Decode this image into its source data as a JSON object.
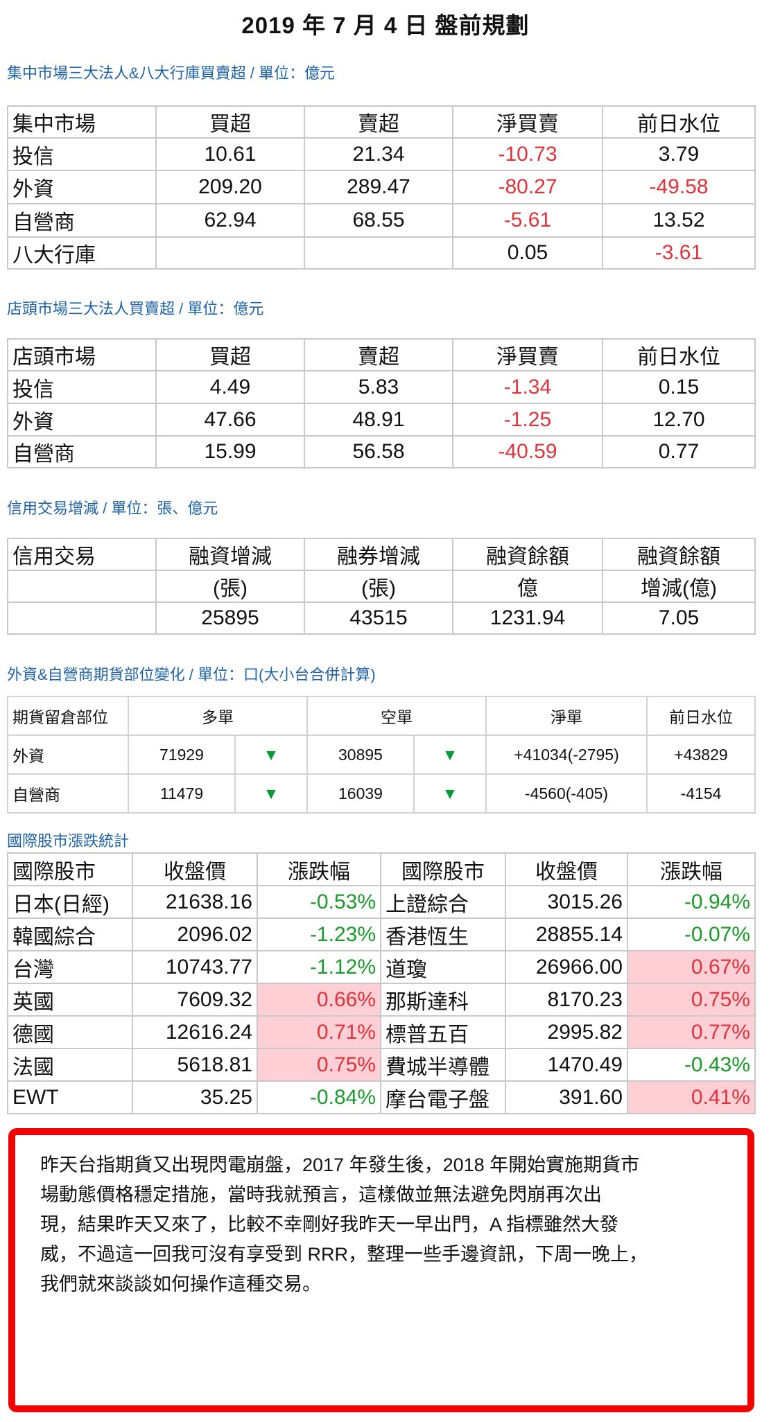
{
  "title": "2019 年 7 月 4 日  盤前規劃",
  "sections": {
    "listed": "集中市場三大法人&八大行庫買賣超 / 單位：億元",
    "otc": "店頭市場三大法人買賣超 / 單位：億元",
    "margin": "信用交易增減 / 單位：張、億元",
    "futures": "外資&自營商期貨部位變化 / 單位：口(大小台合併計算)",
    "intl": "國際股市漲跌統計"
  },
  "listed": {
    "headers": [
      "集中市場",
      "買超",
      "賣超",
      "淨買賣",
      "前日水位"
    ],
    "rows": [
      [
        "投信",
        "10.61",
        "21.34",
        "-10.73",
        "3.79"
      ],
      [
        "外資",
        "209.20",
        "289.47",
        "-80.27",
        "-49.58"
      ],
      [
        "自營商",
        "62.94",
        "68.55",
        "-5.61",
        "13.52"
      ],
      [
        "八大行庫",
        "",
        "",
        "0.05",
        "-3.61"
      ]
    ]
  },
  "otc": {
    "headers": [
      "店頭市場",
      "買超",
      "賣超",
      "淨買賣",
      "前日水位"
    ],
    "rows": [
      [
        "投信",
        "4.49",
        "5.83",
        "-1.34",
        "0.15"
      ],
      [
        "外資",
        "47.66",
        "48.91",
        "-1.25",
        "12.70"
      ],
      [
        "自營商",
        "15.99",
        "56.58",
        "-40.59",
        "0.77"
      ]
    ]
  },
  "margin": {
    "headers": [
      "信用交易",
      "融資增減",
      "融券增減",
      "融資餘額",
      "融資餘額"
    ],
    "units": [
      "",
      "(張)",
      "(張)",
      "億",
      "增減(億)"
    ],
    "values": [
      "",
      "25895",
      "43515",
      "1231.94",
      "7.05"
    ]
  },
  "futures": {
    "headers": [
      "期貨留倉部位",
      "多單",
      "空單",
      "淨單",
      "前日水位"
    ],
    "rows": [
      [
        "外資",
        "71929",
        "▼",
        "30895",
        "▼",
        "+41034(-2795)",
        "+43829"
      ],
      [
        "自營商",
        "11479",
        "▼",
        "16039",
        "▼",
        "-4560(-405)",
        "-4154"
      ]
    ]
  },
  "intl": {
    "headers": [
      "國際股市",
      "收盤價",
      "漲跌幅",
      "國際股市",
      "收盤價",
      "漲跌幅"
    ],
    "rows": [
      [
        "日本(日經)",
        "21638.16",
        "-0.53%",
        "上證綜合",
        "3015.26",
        "-0.94%"
      ],
      [
        "韓國綜合",
        "2096.02",
        "-1.23%",
        "香港恆生",
        "28855.14",
        "-0.07%"
      ],
      [
        "台灣",
        "10743.77",
        "-1.12%",
        "道瓊",
        "26966.00",
        "0.67%"
      ],
      [
        "英國",
        "7609.32",
        "0.66%",
        "那斯達科",
        "8170.23",
        "0.75%"
      ],
      [
        "德國",
        "12616.24",
        "0.71%",
        "標普五百",
        "2995.82",
        "0.77%"
      ],
      [
        "法國",
        "5618.81",
        "0.75%",
        "費城半導體",
        "1470.49",
        "-0.43%"
      ],
      [
        "EWT",
        "35.25",
        "-0.84%",
        "摩台電子盤",
        "391.60",
        "0.41%"
      ]
    ]
  },
  "colors": {
    "negative": "#e0323a",
    "decline_pct": "#1a9a2a",
    "rise_bg": "#ffcfd6",
    "box_border": "#f20000",
    "section_title": "#1e62a6"
  },
  "note_lines": [
    "昨天台指期貨又出現閃電崩盤，2017 年發生後，2018 年開始實施期貨市",
    "場動態價格穩定措施，當時我就預言，這樣做並無法避免閃崩再次出",
    "現，結果昨天又來了，比較不幸剛好我昨天一早出門，A 指標雖然大發",
    "威，不過這一回我可沒有享受到 RRR，整理一些手邊資訊，下周一晚上，",
    "我們就來談談如何操作這種交易。"
  ]
}
